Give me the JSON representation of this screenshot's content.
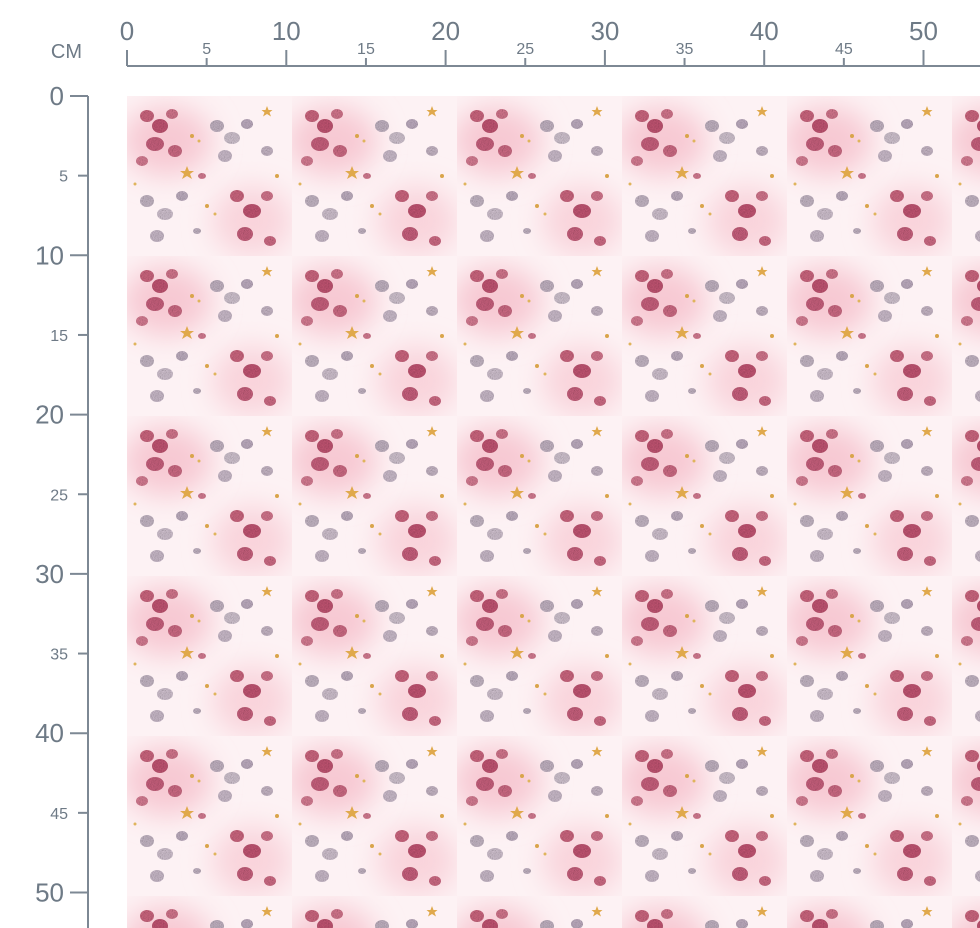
{
  "unit": "CM",
  "top_ruler": {
    "labels": [
      0,
      5,
      10,
      15,
      20,
      25,
      30,
      35,
      40,
      45,
      50
    ]
  },
  "left_ruler": {
    "labels": [
      0,
      5,
      10,
      15,
      20,
      25,
      30,
      35,
      40,
      45,
      50
    ]
  }
}
